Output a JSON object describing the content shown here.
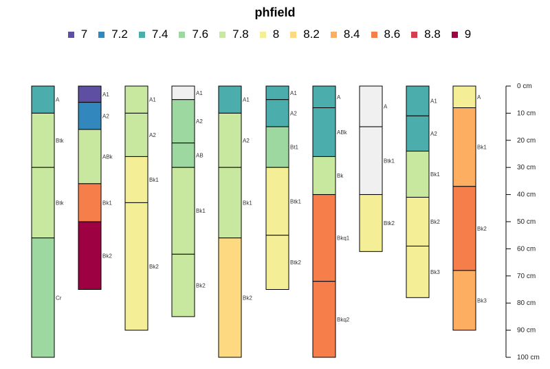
{
  "chart_data": {
    "type": "soil-profile",
    "title": "phfield",
    "legend": [
      {
        "label": "7",
        "color": "#5E4FA2"
      },
      {
        "label": "7.2",
        "color": "#3288BD"
      },
      {
        "label": "7.4",
        "color": "#4BAEAD"
      },
      {
        "label": "7.6",
        "color": "#9DD8A0"
      },
      {
        "label": "7.8",
        "color": "#C8E8A0"
      },
      {
        "label": "8",
        "color": "#F4EE96"
      },
      {
        "label": "8.2",
        "color": "#FDDA82"
      },
      {
        "label": "8.4",
        "color": "#FDAE61"
      },
      {
        "label": "8.6",
        "color": "#F67E4B"
      },
      {
        "label": "8.8",
        "color": "#D53E4F"
      },
      {
        "label": "9",
        "color": "#9E0142"
      }
    ],
    "depth_axis": {
      "min": 0,
      "max": 100,
      "step": 10,
      "unit": "cm",
      "tick_labels": [
        "0 cm",
        "10 cm",
        "20 cm",
        "30 cm",
        "40 cm",
        "50 cm",
        "60 cm",
        "70 cm",
        "80 cm",
        "90 cm",
        "100 cm"
      ]
    },
    "missing_color": "#F0F0F0",
    "profiles": [
      {
        "horizons": [
          {
            "name": "A",
            "top": 0,
            "bottom": 10,
            "ph": 7.5
          },
          {
            "name": "Btk",
            "top": 10,
            "bottom": 30,
            "ph": 7.8
          },
          {
            "name": "Btk",
            "top": 30,
            "bottom": 56,
            "ph": 7.8
          },
          {
            "name": "Cr",
            "top": 56,
            "bottom": 100,
            "ph": 7.6
          }
        ]
      },
      {
        "horizons": [
          {
            "name": "A1",
            "top": 0,
            "bottom": 6,
            "ph": 7.0
          },
          {
            "name": "A2",
            "top": 6,
            "bottom": 16,
            "ph": 7.2
          },
          {
            "name": "ABk",
            "top": 16,
            "bottom": 36,
            "ph": 7.8
          },
          {
            "name": "Bk1",
            "top": 36,
            "bottom": 50,
            "ph": 8.6
          },
          {
            "name": "Bk2",
            "top": 50,
            "bottom": 75,
            "ph": 9.0
          }
        ]
      },
      {
        "horizons": [
          {
            "name": "A1",
            "top": 0,
            "bottom": 10,
            "ph": 7.8
          },
          {
            "name": "A2",
            "top": 10,
            "bottom": 26,
            "ph": 7.8
          },
          {
            "name": "Bk1",
            "top": 26,
            "bottom": 43,
            "ph": 8.0
          },
          {
            "name": "Bk2",
            "top": 43,
            "bottom": 90,
            "ph": 8.0
          }
        ]
      },
      {
        "horizons": [
          {
            "name": "A1",
            "top": 0,
            "bottom": 5,
            "ph": null
          },
          {
            "name": "A2",
            "top": 5,
            "bottom": 21,
            "ph": 7.6
          },
          {
            "name": "AB",
            "top": 21,
            "bottom": 30,
            "ph": 7.6
          },
          {
            "name": "Bk1",
            "top": 30,
            "bottom": 62,
            "ph": 7.7
          },
          {
            "name": "Bk2",
            "top": 62,
            "bottom": 85,
            "ph": 7.8
          }
        ]
      },
      {
        "horizons": [
          {
            "name": "A1",
            "top": 0,
            "bottom": 10,
            "ph": 7.5
          },
          {
            "name": "A2",
            "top": 10,
            "bottom": 30,
            "ph": 7.8
          },
          {
            "name": "Bk1",
            "top": 30,
            "bottom": 56,
            "ph": 7.8
          },
          {
            "name": "Bk2",
            "top": 56,
            "bottom": 100,
            "ph": 8.2
          }
        ]
      },
      {
        "horizons": [
          {
            "name": "A1",
            "top": 0,
            "bottom": 5,
            "ph": 7.4
          },
          {
            "name": "A2",
            "top": 5,
            "bottom": 15,
            "ph": 7.4
          },
          {
            "name": "Bt1",
            "top": 15,
            "bottom": 30,
            "ph": 7.6
          },
          {
            "name": "Btk1",
            "top": 30,
            "bottom": 55,
            "ph": 8.0
          },
          {
            "name": "Btk2",
            "top": 55,
            "bottom": 75,
            "ph": 8.0
          }
        ]
      },
      {
        "horizons": [
          {
            "name": "A",
            "top": 0,
            "bottom": 8,
            "ph": 7.4
          },
          {
            "name": "ABk",
            "top": 8,
            "bottom": 26,
            "ph": 7.5
          },
          {
            "name": "Bk",
            "top": 26,
            "bottom": 40,
            "ph": 7.8
          },
          {
            "name": "Bkq1",
            "top": 40,
            "bottom": 72,
            "ph": 8.6
          },
          {
            "name": "Bkq2",
            "top": 72,
            "bottom": 100,
            "ph": 8.6
          }
        ]
      },
      {
        "horizons": [
          {
            "name": "A",
            "top": 0,
            "bottom": 15,
            "ph": null
          },
          {
            "name": "Btk1",
            "top": 15,
            "bottom": 40,
            "ph": null
          },
          {
            "name": "Btk2",
            "top": 40,
            "bottom": 61,
            "ph": 8.0
          }
        ]
      },
      {
        "horizons": [
          {
            "name": "A1",
            "top": 0,
            "bottom": 11,
            "ph": 7.5
          },
          {
            "name": "A2",
            "top": 11,
            "bottom": 24,
            "ph": 7.5
          },
          {
            "name": "Bk1",
            "top": 24,
            "bottom": 41,
            "ph": 7.8
          },
          {
            "name": "Bk2",
            "top": 41,
            "bottom": 59,
            "ph": 8.0
          },
          {
            "name": "Bk3",
            "top": 59,
            "bottom": 78,
            "ph": 8.0
          }
        ]
      },
      {
        "horizons": [
          {
            "name": "A",
            "top": 0,
            "bottom": 8,
            "ph": 8.0
          },
          {
            "name": "Bk1",
            "top": 8,
            "bottom": 37,
            "ph": 8.3
          },
          {
            "name": "Bk2",
            "top": 37,
            "bottom": 68,
            "ph": 8.6
          },
          {
            "name": "Bk3",
            "top": 68,
            "bottom": 90,
            "ph": 8.3
          }
        ]
      }
    ]
  }
}
